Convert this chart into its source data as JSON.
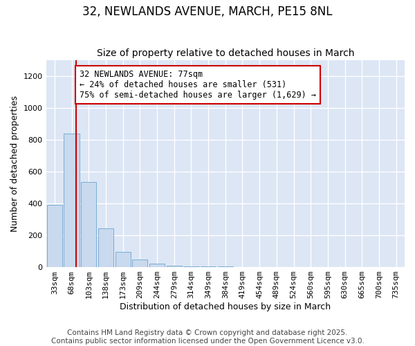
{
  "title": "32, NEWLANDS AVENUE, MARCH, PE15 8NL",
  "subtitle": "Size of property relative to detached houses in March",
  "xlabel": "Distribution of detached houses by size in March",
  "ylabel": "Number of detached properties",
  "bar_labels": [
    "33sqm",
    "68sqm",
    "103sqm",
    "138sqm",
    "173sqm",
    "209sqm",
    "244sqm",
    "279sqm",
    "314sqm",
    "349sqm",
    "384sqm",
    "419sqm",
    "454sqm",
    "489sqm",
    "524sqm",
    "560sqm",
    "595sqm",
    "630sqm",
    "665sqm",
    "700sqm",
    "735sqm"
  ],
  "bar_values": [
    390,
    840,
    535,
    245,
    95,
    50,
    20,
    10,
    5,
    5,
    3,
    0,
    0,
    0,
    0,
    0,
    0,
    0,
    0,
    0,
    0
  ],
  "bar_color": "#c9d9ee",
  "bar_edge_color": "#7aadd4",
  "bar_edge_width": 0.7,
  "red_line_x": 1.26,
  "annotation_text": "32 NEWLANDS AVENUE: 77sqm\n← 24% of detached houses are smaller (531)\n75% of semi-detached houses are larger (1,629) →",
  "annotation_box_color": "#ffffff",
  "annotation_box_edge": "#cc0000",
  "red_line_color": "#cc0000",
  "ylim": [
    0,
    1300
  ],
  "yticks": [
    0,
    200,
    400,
    600,
    800,
    1000,
    1200
  ],
  "plot_bg_color": "#dce6f5",
  "fig_bg_color": "#ffffff",
  "grid_color": "#ffffff",
  "footer_line1": "Contains HM Land Registry data © Crown copyright and database right 2025.",
  "footer_line2": "Contains public sector information licensed under the Open Government Licence v3.0.",
  "title_fontsize": 12,
  "subtitle_fontsize": 10,
  "axis_label_fontsize": 9,
  "tick_fontsize": 8,
  "annotation_fontsize": 8.5,
  "footer_fontsize": 7.5
}
